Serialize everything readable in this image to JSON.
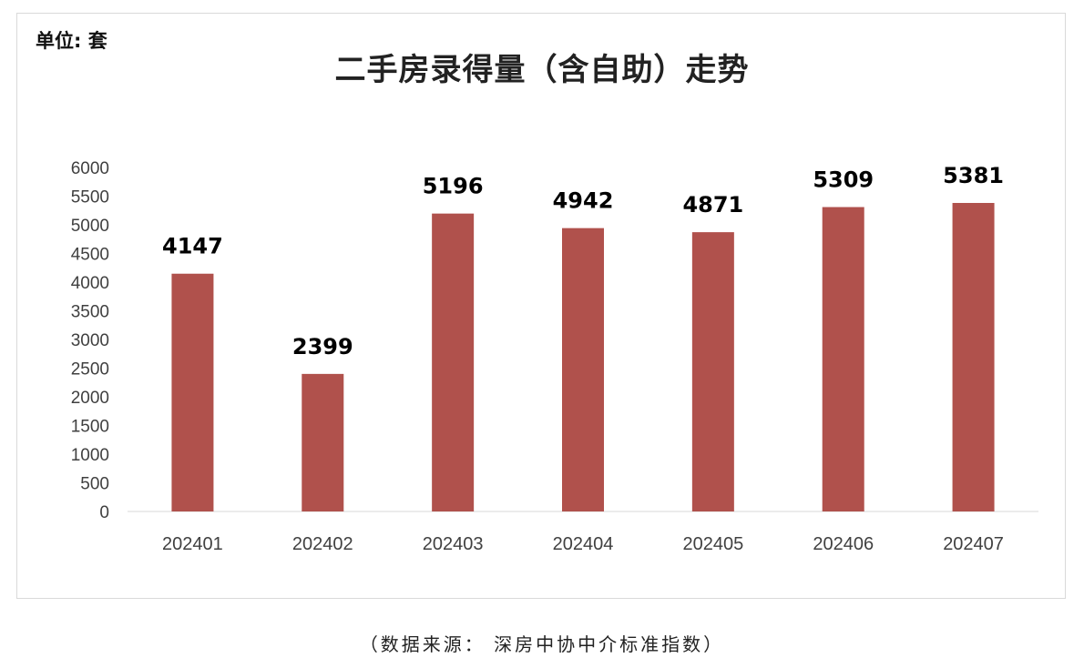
{
  "unit_label": "单位: 套",
  "source_note": "（数据来源： 深房中协中介标准指数）",
  "colors": {
    "bar": "#B0514C",
    "axis_text": "#404040",
    "label_text": "#000000"
  },
  "chart_data": {
    "type": "bar",
    "title": "二手房录得量（含自助）走势",
    "categories": [
      "202401",
      "202402",
      "202403",
      "202404",
      "202405",
      "202406",
      "202407"
    ],
    "values": [
      4147,
      2399,
      5196,
      4942,
      4871,
      5309,
      5381
    ],
    "data_labels": [
      "4147",
      "2399",
      "5196",
      "4942",
      "4871",
      "5309",
      "5381"
    ],
    "yticks": [
      "0",
      "500",
      "1000",
      "1500",
      "2000",
      "2500",
      "3000",
      "3500",
      "4000",
      "4500",
      "5000",
      "5500",
      "6000"
    ],
    "ylim": [
      0,
      6000
    ],
    "grid": false,
    "legend": "none"
  }
}
